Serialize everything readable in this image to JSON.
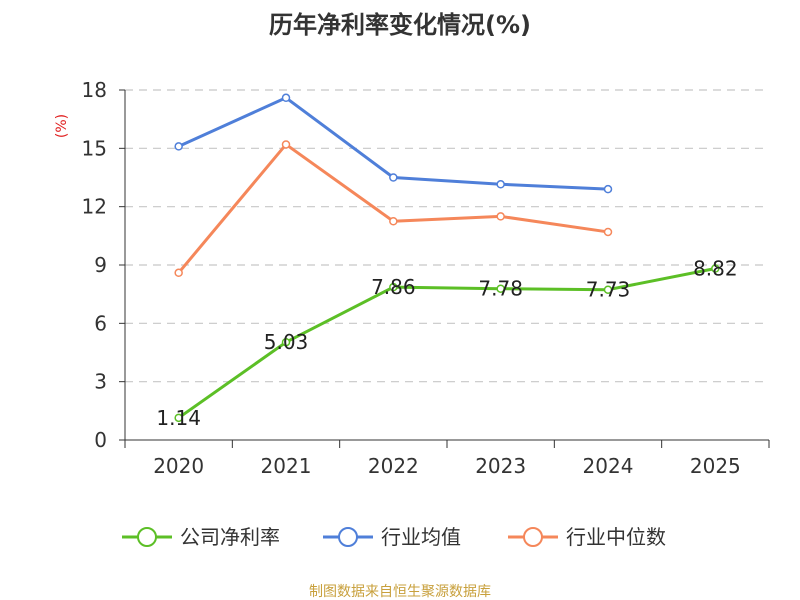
{
  "chart_data": {
    "type": "line",
    "title": "历年净利率变化情况(%)",
    "ylabel": "(%)",
    "xlabel": "",
    "categories": [
      "2020",
      "2021",
      "2022",
      "2023",
      "2024",
      "2025"
    ],
    "yticks": [
      "0",
      "3",
      "6",
      "9",
      "12",
      "15",
      "18"
    ],
    "ylim": [
      0,
      18
    ],
    "grid": true,
    "legend_position": "bottom",
    "series": [
      {
        "name": "公司净利率",
        "color": "#5cbf26",
        "values": [
          1.14,
          5.03,
          7.86,
          7.78,
          7.73,
          8.82
        ],
        "labels": [
          "1.14",
          "5.03",
          "7.86",
          "7.78",
          "7.73",
          "8.82"
        ],
        "show_labels": true
      },
      {
        "name": "行业均值",
        "color": "#4f7fd9",
        "values": [
          15.1,
          17.6,
          13.5,
          13.15,
          12.9,
          null
        ],
        "show_labels": false
      },
      {
        "name": "行业中位数",
        "color": "#f5875a",
        "values": [
          8.6,
          15.2,
          11.25,
          11.5,
          10.7,
          null
        ],
        "show_labels": false
      }
    ]
  },
  "source": "制图数据来自恒生聚源数据库",
  "colors": {
    "axis": "#333333",
    "grid": "#c8c8c8",
    "unit": "#e02020",
    "source": "#c8a03c"
  }
}
